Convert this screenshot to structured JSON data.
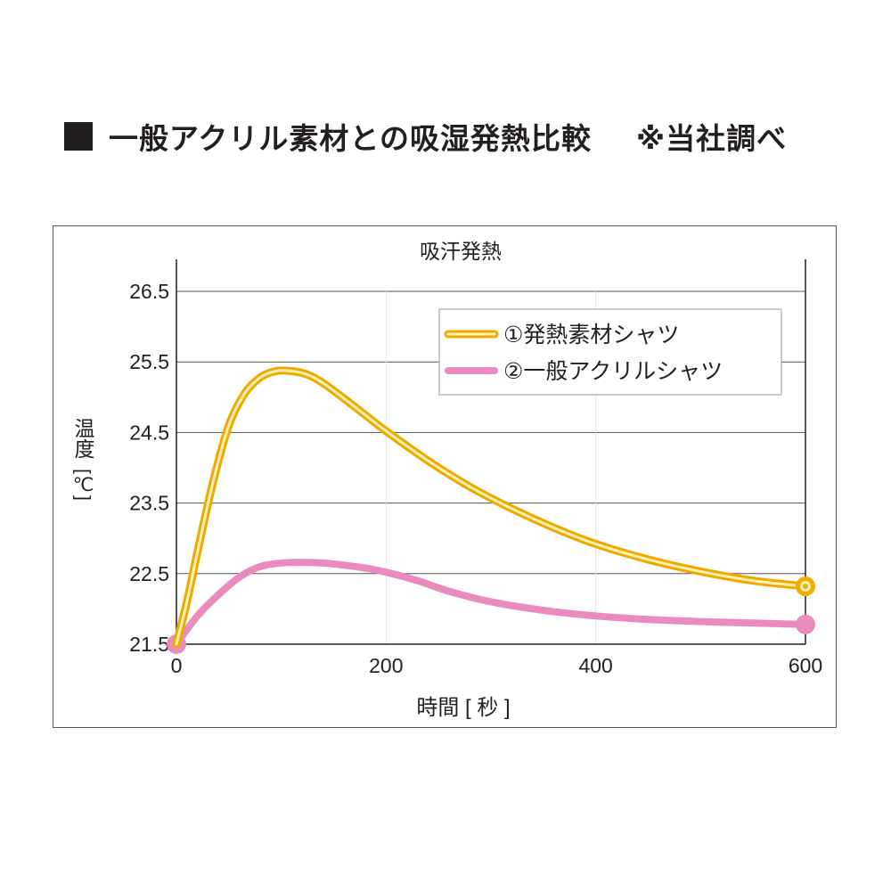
{
  "heading": {
    "title": "一般アクリル素材との吸湿発熱比較",
    "note": "※当社調べ"
  },
  "chart_data": {
    "type": "line",
    "title": "吸汗発熱",
    "xlabel": "時間 [ 秒 ]",
    "ylabel": "温度",
    "yunit": "[℃]",
    "xlim": [
      0,
      600
    ],
    "ylim": [
      21.5,
      26.5
    ],
    "xticks": [
      "0",
      "200",
      "400",
      "600"
    ],
    "yticks": [
      "21.5",
      "22.5",
      "23.5",
      "24.5",
      "25.5",
      "26.5"
    ],
    "xtick_values": [
      0,
      200,
      400,
      600
    ],
    "ytick_values": [
      21.5,
      22.5,
      23.5,
      24.5,
      25.5,
      26.5
    ],
    "grid": "horizontal",
    "legend_position": "top-right",
    "series": [
      {
        "name": "①発熱素材シャツ",
        "color": "#f5b800",
        "x": [
          0,
          10,
          20,
          35,
          50,
          65,
          80,
          95,
          110,
          125,
          140,
          160,
          180,
          200,
          240,
          280,
          320,
          360,
          400,
          450,
          500,
          550,
          600
        ],
        "y": [
          21.5,
          22.1,
          22.8,
          23.8,
          24.6,
          25.05,
          25.28,
          25.37,
          25.37,
          25.32,
          25.2,
          24.98,
          24.75,
          24.52,
          24.1,
          23.73,
          23.42,
          23.15,
          22.92,
          22.7,
          22.53,
          22.4,
          22.32
        ]
      },
      {
        "name": "②一般アクリルシャツ",
        "color": "#e98bbd",
        "x": [
          0,
          20,
          40,
          60,
          80,
          100,
          120,
          140,
          160,
          180,
          200,
          230,
          260,
          300,
          350,
          400,
          450,
          500,
          550,
          600
        ],
        "y": [
          21.5,
          21.9,
          22.2,
          22.45,
          22.6,
          22.65,
          22.66,
          22.65,
          22.62,
          22.58,
          22.52,
          22.4,
          22.25,
          22.1,
          21.98,
          21.9,
          21.85,
          21.82,
          21.8,
          21.78
        ]
      }
    ]
  }
}
